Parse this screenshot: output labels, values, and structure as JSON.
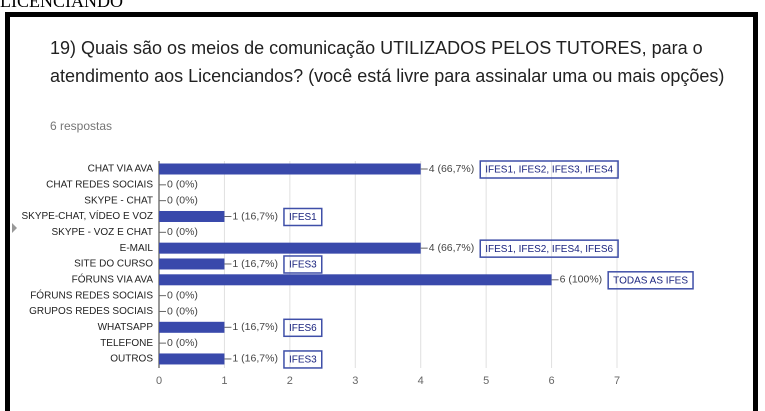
{
  "page_header": "LICENCIANDO",
  "chart_data": {
    "type": "bar",
    "orientation": "horizontal",
    "title": "19) Quais são os meios de comunicação UTILIZADOS PELOS TUTORES, para o atendimento aos Licenciandos? (você está livre para assinalar uma ou mais opções)",
    "subtitle": "6 respostas",
    "categories": [
      "CHAT VIA AVA",
      "CHAT REDES SOCIAIS",
      "SKYPE - CHAT",
      "SKYPE-CHAT, VÍDEO E VOZ",
      "SKYPE - VOZ E CHAT",
      "E-MAIL",
      "SITE DO CURSO",
      "FÓRUNS VIA AVA",
      "FÓRUNS REDES SOCIAIS",
      "GRUPOS REDES SOCIAIS",
      "WHATSAPP",
      "TELEFONE",
      "OUTROS"
    ],
    "values": [
      4,
      0,
      0,
      1,
      0,
      4,
      1,
      6,
      0,
      0,
      1,
      0,
      1
    ],
    "value_labels": [
      "4 (66,7%)",
      "0 (0%)",
      "0 (0%)",
      "1 (16,7%)",
      "0 (0%)",
      "4 (66,7%)",
      "1 (16,7%)",
      "6 (100%)",
      "0 (0%)",
      "0 (0%)",
      "1 (16,7%)",
      "0 (0%)",
      "1 (16,7%)"
    ],
    "annotations": [
      "IFES1, IFES2, IFES3, IFES4",
      null,
      null,
      "IFES1",
      null,
      "IFES1, IFES2, IFES4, IFES6",
      "IFES3",
      "TODAS AS IFES",
      null,
      null,
      "IFES6",
      null,
      "IFES3"
    ],
    "color": "#3949ab",
    "xlim": [
      0,
      7
    ],
    "xticks": [
      0,
      1,
      2,
      3,
      4,
      5,
      6,
      7
    ],
    "grid": true
  }
}
